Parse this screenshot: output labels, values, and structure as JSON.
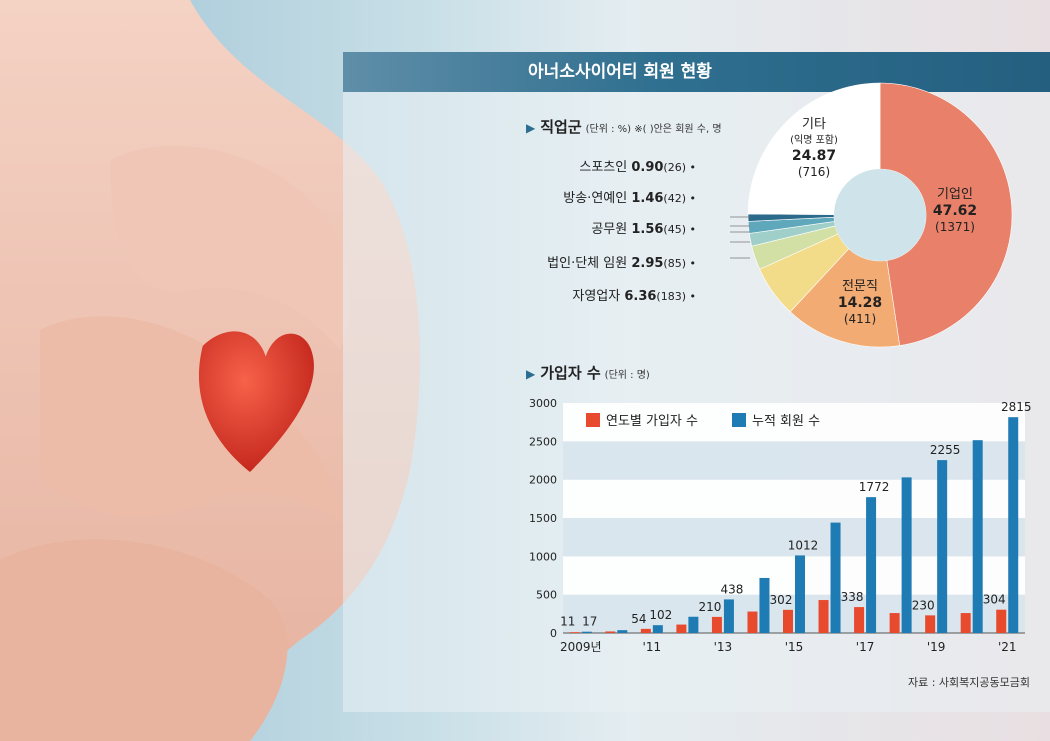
{
  "banner": {
    "title": "아너소사이어티 회원 현황"
  },
  "occupation": {
    "heading": "직업군",
    "note": "(단위 : %)  ※(  )안은 회원 수, 명",
    "small_items": [
      {
        "name": "스포츠인",
        "pct": "0.90",
        "count": "(26)"
      },
      {
        "name": "방송·연예인",
        "pct": "1.46",
        "count": "(42)"
      },
      {
        "name": "공무원",
        "pct": "1.56",
        "count": "(45)"
      },
      {
        "name": "법인·단체 임원",
        "pct": "2.95",
        "count": "(85)"
      },
      {
        "name": "자영업자",
        "pct": "6.36",
        "count": "(183)"
      }
    ],
    "big_items": [
      {
        "name": "기업인",
        "pct": "47.62",
        "count": "(1371)"
      },
      {
        "name": "전문직",
        "pct": "14.28",
        "count": "(411)"
      },
      {
        "name": "기타",
        "sub": "(익명 포함)",
        "pct": "24.87",
        "count": "(716)"
      }
    ]
  },
  "signup": {
    "heading": "가입자 수",
    "note": "(단위 : 명)",
    "legend": {
      "annual": "연도별 가입자 수",
      "cumulative": "누적 회원 수"
    }
  },
  "source": "자료 : 사회복지공동모금회",
  "chart_data": [
    {
      "type": "pie",
      "title": "직업군",
      "unit": "%",
      "slices": [
        {
          "label": "기업인",
          "value": 47.62,
          "count": 1371,
          "color": "#e8806a"
        },
        {
          "label": "전문직",
          "value": 14.28,
          "count": 411,
          "color": "#f2ab72"
        },
        {
          "label": "자영업자",
          "value": 6.36,
          "count": 183,
          "color": "#f2dc8a"
        },
        {
          "label": "법인·단체 임원",
          "value": 2.95,
          "count": 85,
          "color": "#d2e0a6"
        },
        {
          "label": "공무원",
          "value": 1.56,
          "count": 45,
          "color": "#9fcfc8"
        },
        {
          "label": "방송·연예인",
          "value": 1.46,
          "count": 42,
          "color": "#5fa8bc"
        },
        {
          "label": "스포츠인",
          "value": 0.9,
          "count": 26,
          "color": "#2c6a8c"
        },
        {
          "label": "기타",
          "value": 24.87,
          "count": 716,
          "color": "#ffffff"
        }
      ]
    },
    {
      "type": "bar",
      "title": "가입자 수",
      "unit": "명",
      "x": [
        "2009",
        "2010",
        "2011",
        "2012",
        "2013",
        "2014",
        "2015",
        "2016",
        "2017",
        "2018",
        "2019",
        "2020",
        "2021"
      ],
      "x_tick_labels": [
        "2009년",
        "",
        "'11",
        "",
        "'13",
        "",
        "'15",
        "",
        "'17",
        "",
        "'19",
        "",
        "'21"
      ],
      "series": [
        {
          "name": "연도별 가입자 수",
          "color": "#e84a2e",
          "values": [
            11,
            20,
            54,
            110,
            210,
            280,
            302,
            430,
            338,
            260,
            230,
            260,
            304
          ],
          "labels": [
            "11",
            "",
            "54",
            "",
            "210",
            "",
            "302",
            "",
            "338",
            "",
            "230",
            "",
            "304"
          ]
        },
        {
          "name": "누적 회원 수",
          "color": "#1f7bb3",
          "values": [
            17,
            37,
            102,
            212,
            438,
            718,
            1012,
            1440,
            1772,
            2030,
            2255,
            2515,
            2815
          ],
          "labels": [
            "17",
            "",
            "102",
            "",
            "438",
            "",
            "1012",
            "",
            "1772",
            "",
            "2255",
            "",
            "2815"
          ]
        }
      ],
      "yticks": [
        0,
        500,
        1000,
        1500,
        2000,
        2500,
        3000
      ],
      "ylim": [
        0,
        3000
      ],
      "grid": "horizontal bands",
      "legend": "top-left"
    }
  ]
}
